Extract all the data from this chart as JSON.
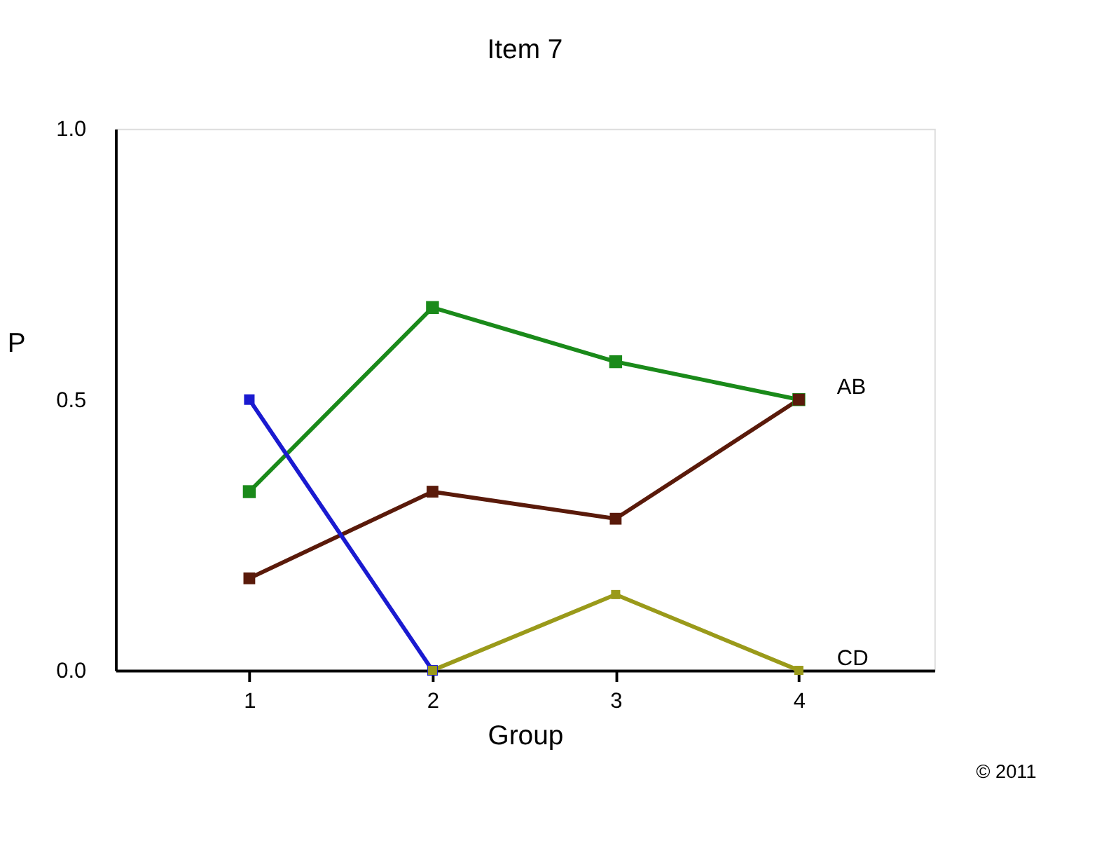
{
  "chart_data": {
    "type": "line",
    "title": "Item 7",
    "xlabel": "Group",
    "ylabel": "P",
    "x": [
      1,
      2,
      3,
      4
    ],
    "series": [
      {
        "color": "#1a8a1a",
        "values": [
          0.33,
          0.67,
          0.57,
          0.5
        ]
      },
      {
        "color": "#5a1a0a",
        "values": [
          0.17,
          0.33,
          0.28,
          0.5
        ]
      },
      {
        "color": "#1a1ad0",
        "values": [
          0.5,
          0,
          null,
          null
        ]
      },
      {
        "color": "#9a9a1a",
        "values": [
          null,
          0,
          0.14,
          0
        ]
      }
    ],
    "xlim": [
      0.27,
      4.74
    ],
    "ylim": [
      0,
      1
    ],
    "xticks": [
      1,
      2,
      3,
      4
    ],
    "yticks": [
      {
        "value": 0,
        "label": "0.0"
      },
      {
        "value": 0.5,
        "label": "0.5"
      },
      {
        "value": 1,
        "label": "1.0"
      }
    ],
    "annotations": [
      {
        "text": "AB",
        "x": 4,
        "y": 0.5
      },
      {
        "text": "CD",
        "x": 4,
        "y": 0
      },
      "© 2011"
    ],
    "marker": "square",
    "line_style": "solid",
    "grid": false
  }
}
